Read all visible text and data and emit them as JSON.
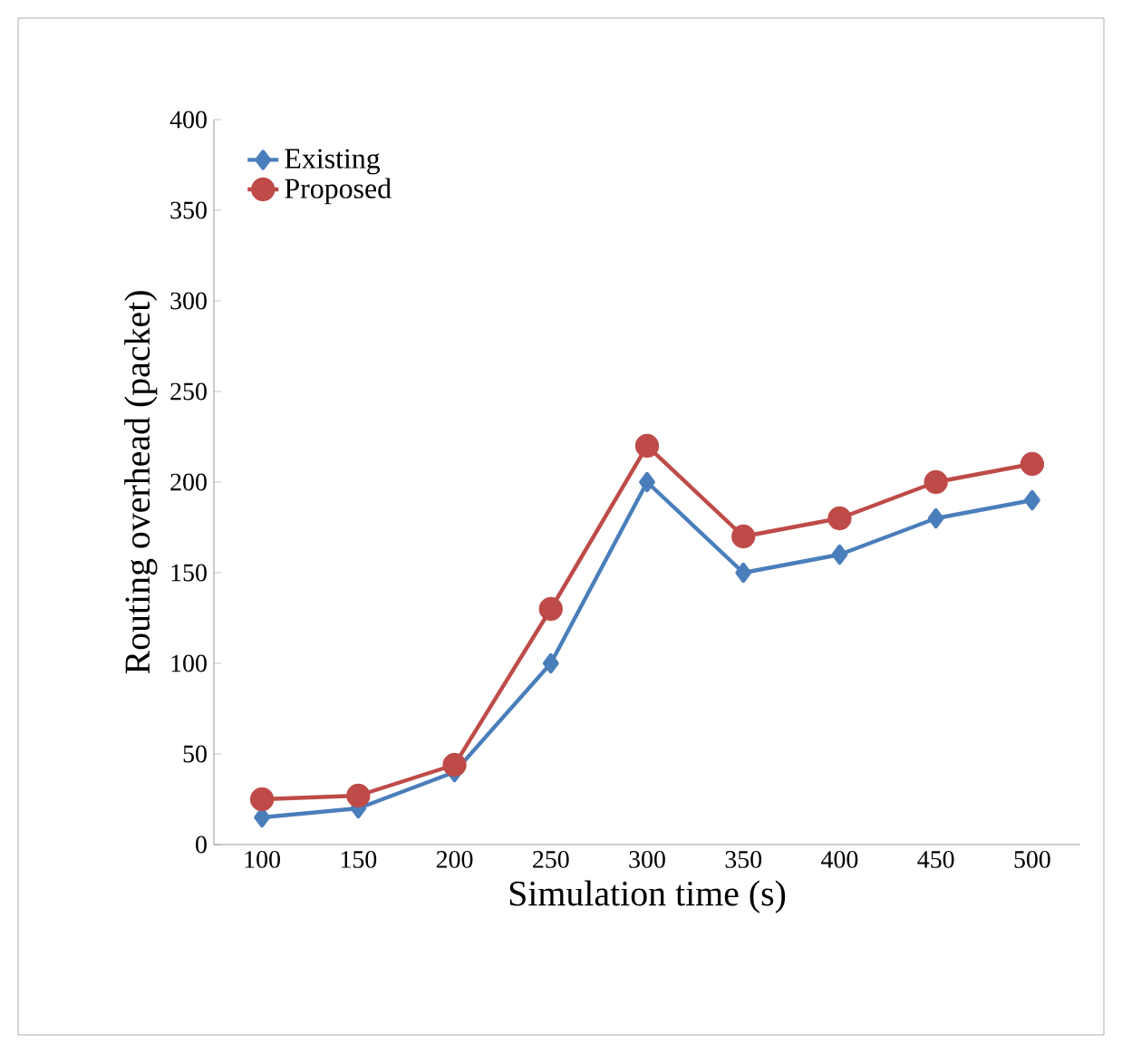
{
  "chart_data": {
    "type": "line",
    "xlabel": "Simulation time (s)",
    "ylabel": "Routing overhead (packet)",
    "categories": [
      "100",
      "150",
      "200",
      "250",
      "300",
      "350",
      "400",
      "450",
      "500"
    ],
    "series": [
      {
        "name": "Existing",
        "color": "#4a7ebb",
        "marker": "diamond",
        "values": [
          15,
          20,
          40,
          100,
          200,
          150,
          160,
          180,
          190
        ]
      },
      {
        "name": "Proposed",
        "color": "#be4b48",
        "marker": "circle",
        "values": [
          25,
          27,
          44,
          130,
          220,
          170,
          180,
          200,
          210
        ]
      }
    ],
    "ylim": [
      0,
      400
    ],
    "yticks": [
      0,
      50,
      100,
      150,
      200,
      250,
      300,
      350,
      400
    ],
    "grid": false,
    "legend": "top left"
  }
}
